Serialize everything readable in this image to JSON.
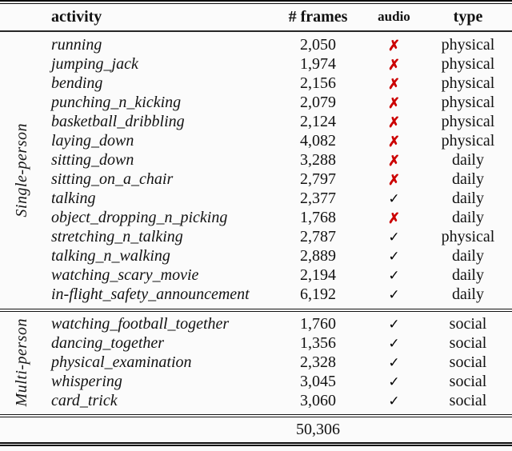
{
  "table": {
    "headers": {
      "activity": "activity",
      "frames": "# frames",
      "audio": "audio",
      "type": "type"
    },
    "groups": [
      {
        "label": "Single-person",
        "rows": [
          {
            "activity": "running",
            "frames": "2,050",
            "audio": "cross",
            "type": "physical"
          },
          {
            "activity": "jumping_jack",
            "frames": "1,974",
            "audio": "cross",
            "type": "physical"
          },
          {
            "activity": "bending",
            "frames": "2,156",
            "audio": "cross",
            "type": "physical"
          },
          {
            "activity": "punching_n_kicking",
            "frames": "2,079",
            "audio": "cross",
            "type": "physical"
          },
          {
            "activity": "basketball_dribbling",
            "frames": "2,124",
            "audio": "cross",
            "type": "physical"
          },
          {
            "activity": "laying_down",
            "frames": "4,082",
            "audio": "cross",
            "type": "physical"
          },
          {
            "activity": "sitting_down",
            "frames": "3,288",
            "audio": "cross",
            "type": "daily"
          },
          {
            "activity": "sitting_on_a_chair",
            "frames": "2,797",
            "audio": "cross",
            "type": "daily"
          },
          {
            "activity": "talking",
            "frames": "2,377",
            "audio": "check",
            "type": "daily"
          },
          {
            "activity": "object_dropping_n_picking",
            "frames": "1,768",
            "audio": "cross",
            "type": "daily"
          },
          {
            "activity": "stretching_n_talking",
            "frames": "2,787",
            "audio": "check",
            "type": "physical"
          },
          {
            "activity": "talking_n_walking",
            "frames": "2,889",
            "audio": "check",
            "type": "daily"
          },
          {
            "activity": "watching_scary_movie",
            "frames": "2,194",
            "audio": "check",
            "type": "daily"
          },
          {
            "activity": "in-flight_safety_announcement",
            "frames": "6,192",
            "audio": "check",
            "type": "daily"
          }
        ]
      },
      {
        "label": "Multi-person",
        "rows": [
          {
            "activity": "watching_football_together",
            "frames": "1,760",
            "audio": "check",
            "type": "social"
          },
          {
            "activity": "dancing_together",
            "frames": "1,356",
            "audio": "check",
            "type": "social"
          },
          {
            "activity": "physical_examination",
            "frames": "2,328",
            "audio": "check",
            "type": "social"
          },
          {
            "activity": "whispering",
            "frames": "3,045",
            "audio": "check",
            "type": "social"
          },
          {
            "activity": "card_trick",
            "frames": "3,060",
            "audio": "check",
            "type": "social"
          }
        ]
      }
    ],
    "total_frames": "50,306"
  },
  "icons": {
    "check": "✓",
    "cross": "✗"
  },
  "colors": {
    "cross": "#cc0000",
    "check": "#000000",
    "rule": "#0d0d0d"
  }
}
